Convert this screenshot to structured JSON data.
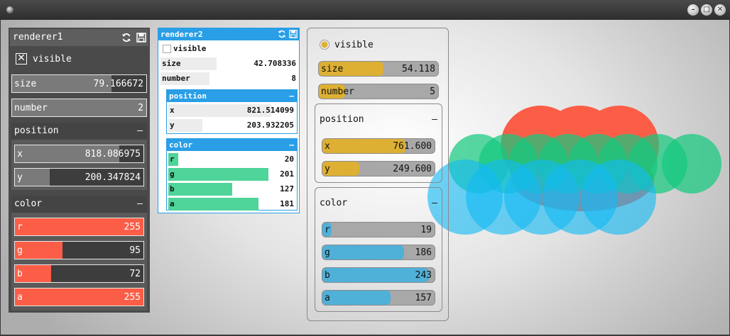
{
  "window": {
    "minimize_label": "–",
    "maximize_label": "□",
    "close_label": "✕"
  },
  "renderer1": {
    "title": "renderer1",
    "visible": {
      "label": "visible",
      "checked": true,
      "mark": "✕"
    },
    "size": {
      "label": "size",
      "value": "79.166672",
      "fraction": 0.74
    },
    "number": {
      "label": "number",
      "value": "2"
    },
    "position": {
      "title": "position",
      "collapse": "–",
      "x": {
        "label": "x",
        "value": "818.086975",
        "fraction": 0.81
      },
      "y": {
        "label": "y",
        "value": "200.347824",
        "fraction": 0.27
      }
    },
    "color": {
      "title": "color",
      "collapse": "–",
      "r": {
        "label": "r",
        "value": "255"
      },
      "g": {
        "label": "g",
        "value": "95"
      },
      "b": {
        "label": "b",
        "value": "72"
      },
      "a": {
        "label": "a",
        "value": "255"
      }
    },
    "icons": [
      "refresh-icon",
      "save-icon"
    ]
  },
  "renderer2": {
    "title": "renderer2",
    "visible": {
      "label": "visible",
      "checked": false
    },
    "size": {
      "label": "size",
      "value": "42.708336",
      "fraction": 0.41
    },
    "number": {
      "label": "number",
      "value": "8",
      "fraction": 0.36
    },
    "position": {
      "title": "position",
      "collapse": "–",
      "x": {
        "label": "x",
        "value": "821.514099",
        "fraction": 0.81
      },
      "y": {
        "label": "y",
        "value": "203.932205",
        "fraction": 0.27
      }
    },
    "color": {
      "title": "color",
      "collapse": "–",
      "r": {
        "label": "r",
        "value": "20"
      },
      "g": {
        "label": "g",
        "value": "201"
      },
      "b": {
        "label": "b",
        "value": "127"
      },
      "a": {
        "label": "a",
        "value": "181"
      }
    },
    "icons": [
      "refresh-icon",
      "save-icon"
    ]
  },
  "renderer3": {
    "visible": {
      "label": "visible",
      "checked": true
    },
    "size": {
      "label": "size",
      "value": "54.118",
      "fraction": 0.5
    },
    "number": {
      "label": "number",
      "value": "5",
      "fraction": 0.2
    },
    "position": {
      "title": "position",
      "collapse": "–",
      "x": {
        "label": "x",
        "value": "761.600",
        "fraction": 0.74
      },
      "y": {
        "label": "y",
        "value": "249.600",
        "fraction": 0.33
      }
    },
    "color": {
      "title": "color",
      "collapse": "–",
      "r": {
        "label": "r",
        "value": "19"
      },
      "g": {
        "label": "g",
        "value": "186"
      },
      "b": {
        "label": "b",
        "value": "243"
      },
      "a": {
        "label": "a",
        "value": "157"
      }
    }
  },
  "colors": {
    "renderer1_fill": "#fb5d47",
    "renderer2_fill": "#4fd49a",
    "renderer3_fill": "#4fb0d8",
    "slider_gold": "#ddb034",
    "accent_blue": "#2a9ee6"
  }
}
